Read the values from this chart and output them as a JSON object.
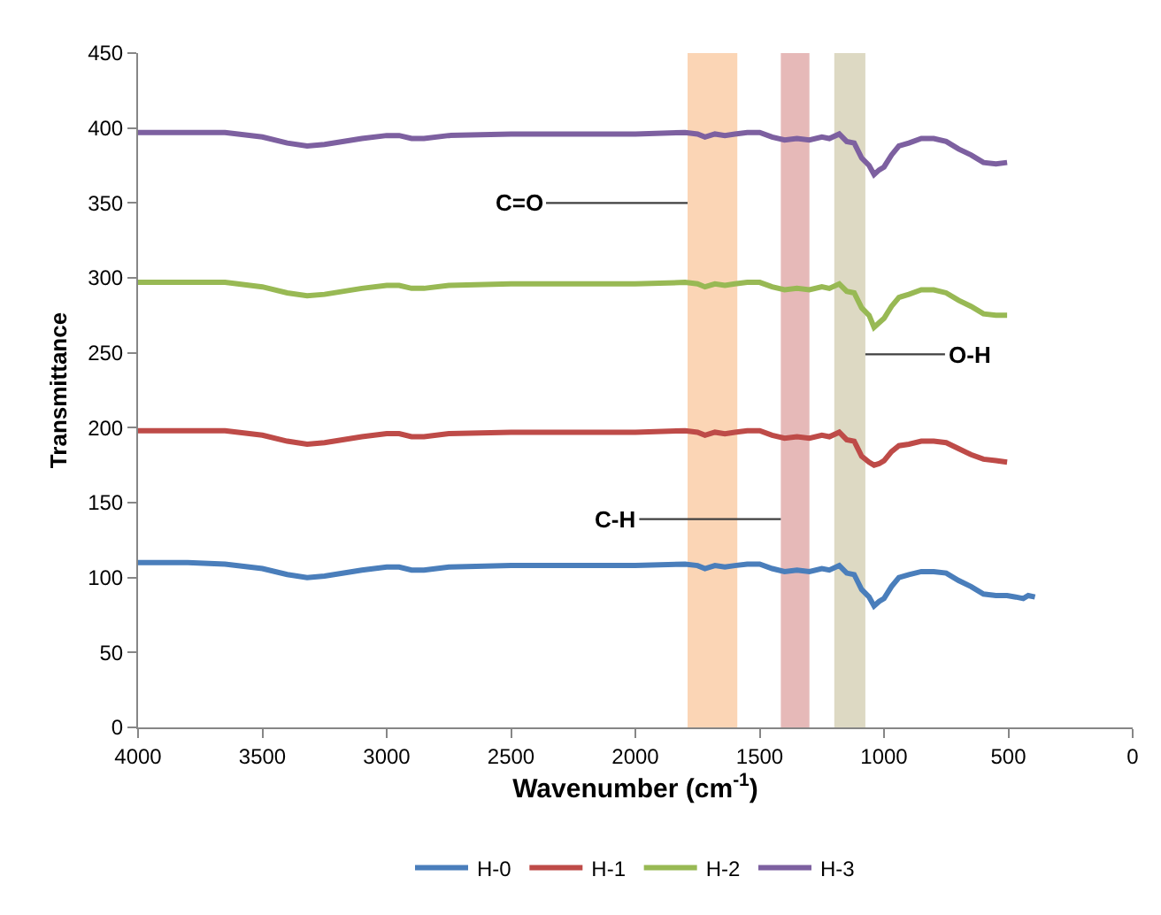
{
  "chart_data": {
    "type": "line",
    "xlabel": "Wavenumber (cm$^{-1}$)",
    "ylabel": "Transmittance",
    "x": [
      4000,
      3800,
      3650,
      3500,
      3400,
      3320,
      3250,
      3100,
      3000,
      2950,
      2900,
      2850,
      2750,
      2500,
      2000,
      1800,
      1750,
      1720,
      1680,
      1640,
      1600,
      1550,
      1500,
      1450,
      1400,
      1350,
      1300,
      1250,
      1220,
      1180,
      1150,
      1120,
      1090,
      1060,
      1040,
      1020,
      1000,
      970,
      940,
      900,
      850,
      800,
      750,
      700,
      650,
      600,
      550,
      505
    ],
    "series": [
      {
        "name": "H-0",
        "color": "#4a7ebb",
        "x": [
          4000,
          3800,
          3650,
          3500,
          3400,
          3320,
          3250,
          3100,
          3000,
          2950,
          2900,
          2850,
          2750,
          2500,
          2000,
          1800,
          1750,
          1720,
          1680,
          1640,
          1600,
          1550,
          1500,
          1450,
          1400,
          1350,
          1300,
          1250,
          1220,
          1180,
          1150,
          1120,
          1090,
          1060,
          1040,
          1020,
          1000,
          970,
          940,
          900,
          850,
          800,
          750,
          700,
          650,
          600,
          550,
          505,
          470,
          440,
          420,
          393
        ],
        "values": [
          110,
          110,
          109,
          106,
          102,
          100,
          101,
          105,
          107,
          107,
          105,
          105,
          107,
          108,
          108,
          109,
          108,
          106,
          108,
          107,
          108,
          109,
          109,
          106,
          104,
          105,
          104,
          106,
          105,
          108,
          103,
          102,
          92,
          87,
          81,
          84,
          86,
          94,
          100,
          102,
          104,
          104,
          103,
          98,
          94,
          89,
          88,
          88,
          87,
          86,
          88,
          87
        ]
      },
      {
        "name": "H-1",
        "color": "#be4b48",
        "values": [
          198,
          198,
          198,
          195,
          191,
          189,
          190,
          194,
          196,
          196,
          194,
          194,
          196,
          197,
          197,
          198,
          197,
          195,
          197,
          196,
          197,
          198,
          198,
          195,
          193,
          194,
          193,
          195,
          194,
          197,
          192,
          191,
          181,
          177,
          175,
          176,
          178,
          184,
          188,
          189,
          191,
          191,
          190,
          186,
          182,
          179,
          178,
          177
        ]
      },
      {
        "name": "H-2",
        "color": "#98b954",
        "values": [
          297,
          297,
          297,
          294,
          290,
          288,
          289,
          293,
          295,
          295,
          293,
          293,
          295,
          296,
          296,
          297,
          296,
          294,
          296,
          295,
          296,
          297,
          297,
          294,
          292,
          293,
          292,
          294,
          293,
          296,
          291,
          290,
          280,
          275,
          267,
          270,
          273,
          281,
          287,
          289,
          292,
          292,
          290,
          285,
          281,
          276,
          275,
          275
        ]
      },
      {
        "name": "H-3",
        "color": "#7d60a0",
        "values": [
          397,
          397,
          397,
          394,
          390,
          388,
          389,
          393,
          395,
          395,
          393,
          393,
          395,
          396,
          396,
          397,
          396,
          394,
          396,
          395,
          396,
          397,
          397,
          394,
          392,
          393,
          392,
          394,
          393,
          396,
          391,
          390,
          380,
          375,
          369,
          372,
          374,
          382,
          388,
          390,
          393,
          393,
          391,
          386,
          382,
          377,
          376,
          377
        ]
      }
    ],
    "bands": [
      {
        "axis": "x",
        "from": 1790,
        "to": 1590,
        "color": "#fbd5b5"
      },
      {
        "axis": "x",
        "from": 1415,
        "to": 1300,
        "color": "#e6b9b8"
      },
      {
        "axis": "x",
        "from": 1200,
        "to": 1075,
        "color": "#ddd9c3"
      }
    ],
    "annotations": [
      {
        "text": "C=O",
        "x": 1790,
        "y": 350
      },
      {
        "text": "C-H",
        "x": 1415,
        "y": 139
      },
      {
        "text": "O-H",
        "x": 1075,
        "y": 249
      }
    ],
    "xlim": [
      4000,
      0
    ],
    "xticks": [
      4000,
      3500,
      3000,
      2500,
      2000,
      1500,
      1000,
      500,
      0
    ],
    "ylim": [
      0,
      450
    ],
    "yticks": [
      0,
      50,
      100,
      150,
      200,
      250,
      300,
      350,
      400,
      450
    ],
    "grid": false,
    "legend": "bottom",
    "marker": "none",
    "line_style": "solid"
  }
}
